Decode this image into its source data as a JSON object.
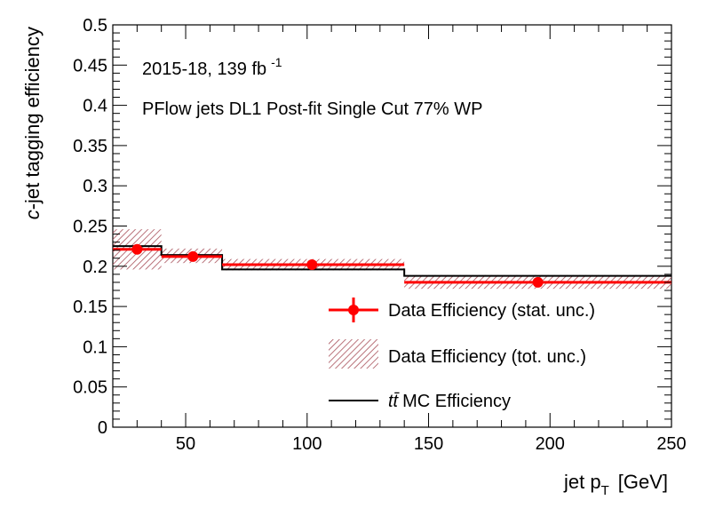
{
  "chart_data": {
    "type": "line",
    "xlabel": "jet p",
    "xlabel_sub": "T",
    "xlabel_unit": "[GeV]",
    "ylabel_italic": "c",
    "ylabel_rest": "-jet tagging efficiency",
    "xlim": [
      20,
      250
    ],
    "ylim": [
      0,
      0.5
    ],
    "x_ticks": [
      50,
      100,
      150,
      200,
      250
    ],
    "y_ticks": [
      0,
      0.05,
      0.1,
      0.15,
      0.2,
      0.25,
      0.3,
      0.35,
      0.4,
      0.45,
      0.5
    ],
    "y_tick_labels": [
      "0",
      "0.05",
      "0.1",
      "0.15",
      "0.2",
      "0.25",
      "0.3",
      "0.35",
      "0.4",
      "0.45",
      "0.5"
    ],
    "annotations": {
      "lumi": "2015-18, 139 fb",
      "lumi_sup": "-1",
      "selection": "PFlow jets DL1 Post-fit Single Cut 77% WP"
    },
    "bins": [
      {
        "low": 20,
        "high": 40,
        "center": 30,
        "data": 0.221,
        "stat_err": 0.003,
        "tot_low": 0.196,
        "tot_high": 0.246,
        "mc": 0.225
      },
      {
        "low": 40,
        "high": 65,
        "center": 53,
        "data": 0.212,
        "stat_err": 0.002,
        "tot_low": 0.204,
        "tot_high": 0.222,
        "mc": 0.214
      },
      {
        "low": 65,
        "high": 140,
        "center": 102,
        "data": 0.202,
        "stat_err": 0.002,
        "tot_low": 0.195,
        "tot_high": 0.209,
        "mc": 0.196
      },
      {
        "low": 140,
        "high": 250,
        "center": 195,
        "data": 0.18,
        "stat_err": 0.002,
        "tot_low": 0.172,
        "tot_high": 0.189,
        "mc": 0.188
      }
    ],
    "series": [
      {
        "name": "Data Efficiency (stat. unc.)",
        "color": "#ff0000"
      },
      {
        "name": "Data Efficiency (tot. unc.)",
        "color": "#a8505a"
      },
      {
        "name": "MC Efficiency",
        "name_prefix": "tt̄",
        "color": "#000000"
      }
    ],
    "legend_position": "bottom-right",
    "grid": false
  }
}
